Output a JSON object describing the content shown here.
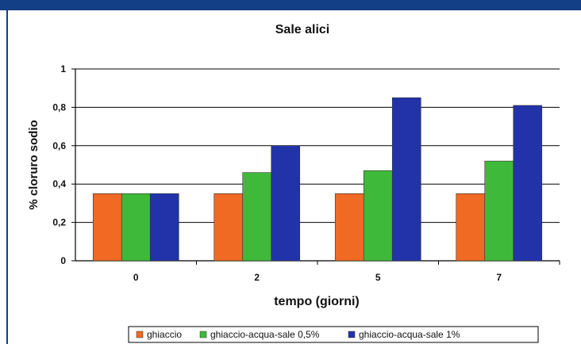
{
  "colors": {
    "top_bar": "#123f86",
    "left_rule": "#123f86",
    "plot_bg": "#ffffff",
    "grid": "#000000"
  },
  "chart_data": {
    "type": "bar",
    "title": "Sale alici",
    "xlabel": "tempo (giorni)",
    "ylabel": "% cloruro sodio",
    "categories": [
      "0",
      "2",
      "5",
      "7"
    ],
    "ylim": [
      0,
      1
    ],
    "yticks": [
      0,
      0.2,
      0.4,
      0.6,
      0.8,
      1
    ],
    "ytick_labels": [
      "0",
      "0,2",
      "0,4",
      "0,6",
      "0,8",
      "1"
    ],
    "grid": true,
    "legend_position": "bottom",
    "series": [
      {
        "name": "ghiaccio",
        "color": "#f06a23",
        "values": [
          0.35,
          0.35,
          0.35,
          0.35
        ]
      },
      {
        "name": "ghiaccio-acqua-sale 0,5%",
        "color": "#3fb93a",
        "values": [
          0.35,
          0.46,
          0.47,
          0.52
        ]
      },
      {
        "name": "ghiaccio-acqua-sale 1%",
        "color": "#2233aa",
        "values": [
          0.35,
          0.6,
          0.85,
          0.81
        ]
      }
    ]
  }
}
